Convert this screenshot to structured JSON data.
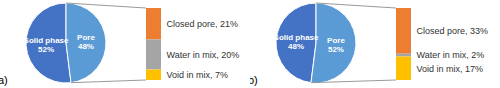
{
  "chart_data": [
    {
      "type": "pie",
      "title": "(a)",
      "categories": [
        "Solid phase",
        "Pore"
      ],
      "values": [
        52,
        48
      ],
      "value_labels": [
        "52%",
        "48%"
      ],
      "colors": [
        "#4472c4",
        "#5b9bd5"
      ],
      "data_labels": true,
      "breakdown": {
        "type": "bar",
        "stacked": true,
        "data_labels": true,
        "categories": [
          "Closed pore",
          "Water in mix",
          "Void in mix"
        ],
        "values": [
          21,
          20,
          7
        ],
        "value_labels": [
          "Closed pore, 21%",
          "Water in mix, 20%",
          "Void in mix, 7%"
        ],
        "colors": [
          "#ed7d31",
          "#a5a5a5",
          "#ffc000"
        ]
      }
    },
    {
      "type": "pie",
      "title": "(b)",
      "categories": [
        "Solid phase",
        "Pore"
      ],
      "values": [
        48,
        52
      ],
      "value_labels": [
        "48%",
        "52%"
      ],
      "colors": [
        "#4472c4",
        "#5b9bd5"
      ],
      "data_labels": true,
      "breakdown": {
        "type": "bar",
        "stacked": true,
        "data_labels": true,
        "categories": [
          "Closed pore",
          "Water in mix",
          "Void in mix"
        ],
        "values": [
          33,
          2,
          17
        ],
        "value_labels": [
          "Closed pore, 33%",
          "Water in mix, 2%",
          "Void in mix, 17%"
        ],
        "colors": [
          "#ed7d31",
          "#a5a5a5",
          "#ffc000"
        ]
      }
    }
  ]
}
